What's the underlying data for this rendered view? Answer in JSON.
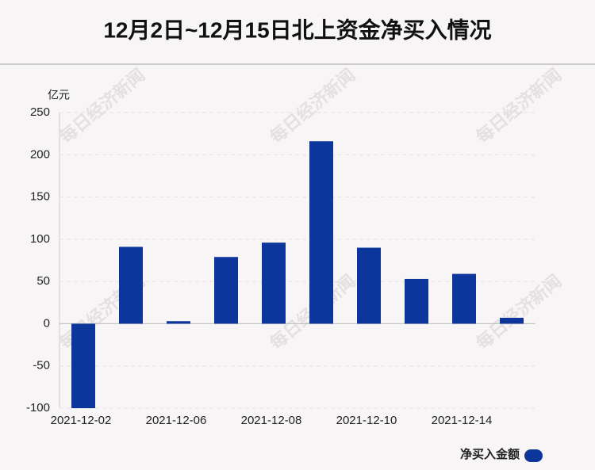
{
  "chart_data": {
    "type": "bar",
    "title": "12月2日~12月15日北上资金净买入情况",
    "y_unit": "亿元",
    "watermark": "每日经济新闻",
    "categories": [
      "2021-12-02",
      null,
      "2021-12-06",
      null,
      "2021-12-08",
      null,
      "2021-12-10",
      null,
      "2021-12-14",
      null
    ],
    "series": [
      {
        "name": "净买入金额",
        "color": "#0d369c",
        "values": [
          -100,
          91,
          3,
          79,
          96,
          216,
          90,
          53,
          59,
          7
        ]
      }
    ],
    "ylim": [
      -100,
      250
    ],
    "yticks": [
      -100,
      -50,
      0,
      50,
      100,
      150,
      200,
      250
    ],
    "grid": true
  }
}
